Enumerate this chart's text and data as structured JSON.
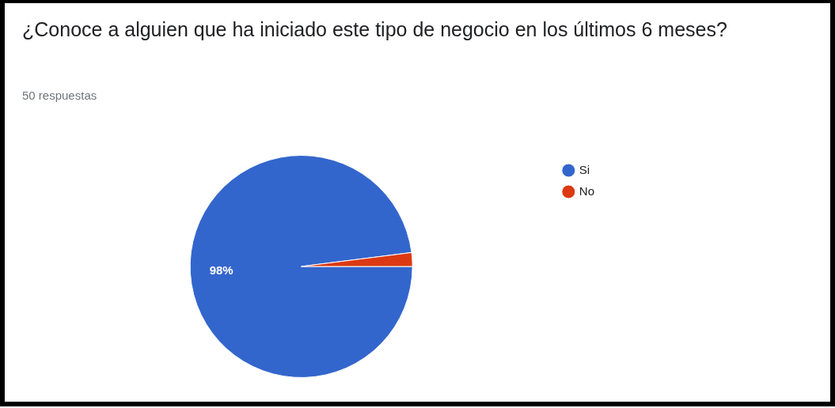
{
  "chart_data": {
    "type": "pie",
    "title": "¿Conoce a alguien que ha iniciado este tipo de negocio en los últimos 6 meses?",
    "subtitle": "50 respuestas",
    "categories": [
      "Si",
      "No"
    ],
    "values": [
      98,
      2
    ],
    "colors": [
      "#3366cc",
      "#dc3912"
    ],
    "value_labels": [
      "98%",
      null
    ],
    "legend": "right"
  }
}
